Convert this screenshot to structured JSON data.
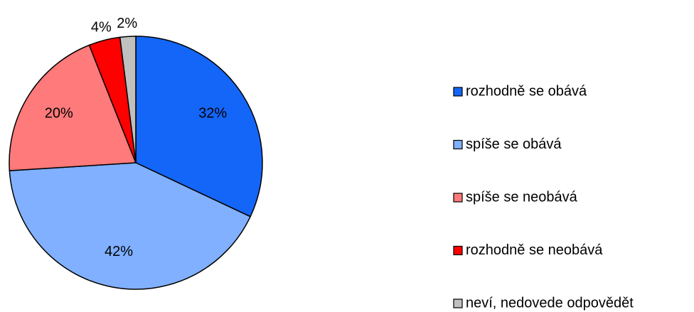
{
  "chart_data": {
    "type": "pie",
    "categories": [
      "rozhodně se obává",
      "spíše se obává",
      "spíše se neobává",
      "rozhodně se neobává",
      "neví, nedovede odpovědět"
    ],
    "values": [
      32,
      42,
      20,
      4,
      2
    ],
    "value_labels": [
      "32%",
      "42%",
      "20%",
      "4%",
      "2%"
    ],
    "colors": [
      "#1466f8",
      "#80b0ff",
      "#ff7a7a",
      "#ff0000",
      "#c0c0c0"
    ],
    "legend": "right"
  }
}
